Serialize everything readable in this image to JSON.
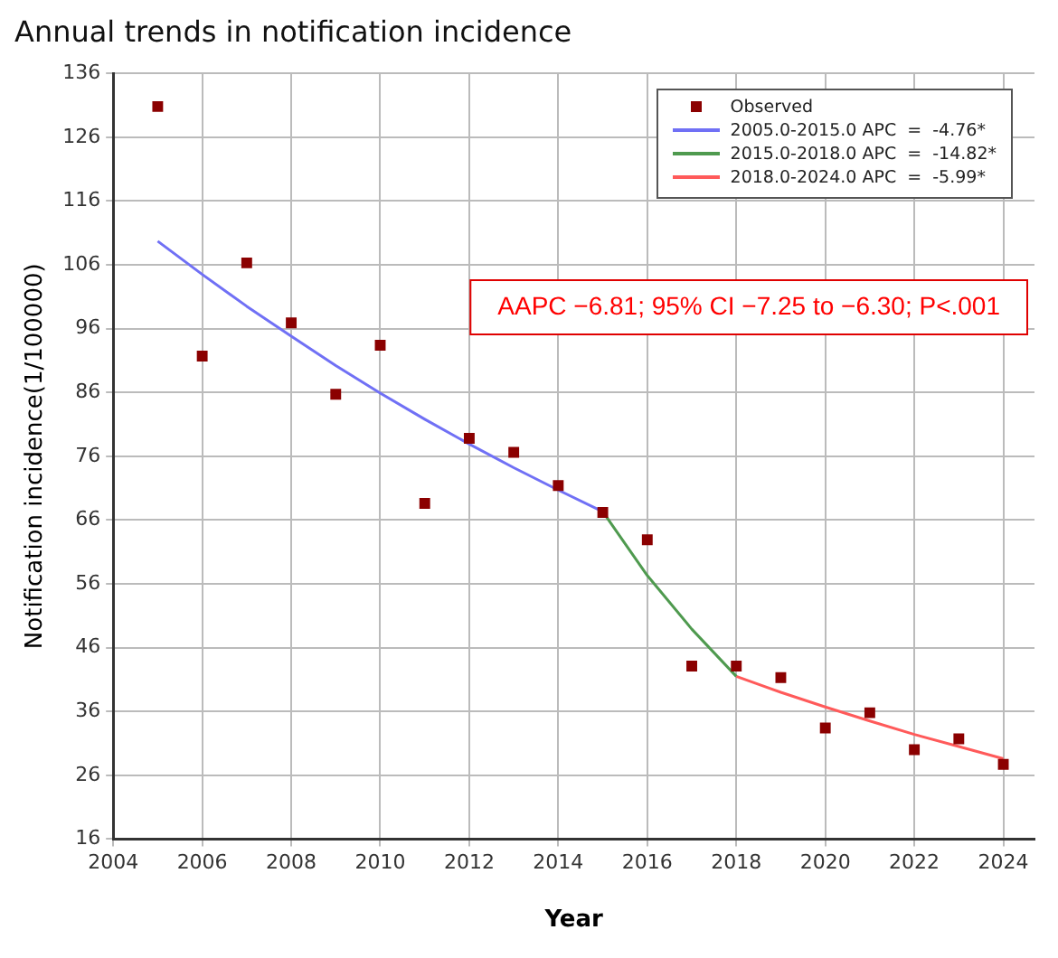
{
  "chart_data": {
    "type": "scatter",
    "title": "Annual trends in notification incidence",
    "xlabel": "Year",
    "ylabel": "Notification incidence(1/100000)",
    "xlim": [
      2004,
      2024.7
    ],
    "xticks": [
      2004,
      2006,
      2008,
      2010,
      2012,
      2014,
      2016,
      2018,
      2020,
      2022,
      2024
    ],
    "ylim": [
      16,
      136
    ],
    "yticks": [
      16,
      26,
      36,
      46,
      56,
      66,
      76,
      86,
      96,
      106,
      116,
      126,
      136
    ],
    "grid": true,
    "legend": "top right",
    "annotations": [
      "AAPC −6.81; 95% CI −7.25 to −6.30; P<.001"
    ],
    "series": [
      {
        "name": "Observed",
        "type": "scatter",
        "marker": "square",
        "color": "#8b0000",
        "x": [
          2005,
          2006,
          2007,
          2008,
          2009,
          2010,
          2011,
          2012,
          2013,
          2014,
          2015,
          2016,
          2017,
          2018,
          2019,
          2020,
          2021,
          2022,
          2023,
          2024
        ],
        "values": [
          130.8,
          91.7,
          106.3,
          96.9,
          85.7,
          93.4,
          68.6,
          78.8,
          76.6,
          71.4,
          67.2,
          62.9,
          43.1,
          43.1,
          41.3,
          33.4,
          35.8,
          30,
          31.7,
          27.7
        ]
      },
      {
        "name": "2005.0-2015.0 APC  =  -4.76*",
        "type": "line",
        "marker": "none",
        "color": "#7070f5",
        "x": [
          2005,
          2006,
          2007,
          2008,
          2009,
          2010,
          2011,
          2012,
          2013,
          2014,
          2015
        ],
        "values": [
          109.7,
          104.5,
          99.5,
          94.8,
          90.2,
          85.9,
          81.8,
          77.9,
          74.2,
          70.7,
          67.3
        ]
      },
      {
        "name": "2015.0-2018.0 APC  =  -14.82*",
        "type": "line",
        "marker": "none",
        "color": "#4f9a4f",
        "x": [
          2015,
          2016,
          2017,
          2018
        ],
        "values": [
          67.3,
          57.3,
          48.9,
          41.5
        ]
      },
      {
        "name": "2018.0-2024.0 APC  =  -5.99*",
        "type": "line",
        "marker": "none",
        "color": "#ff5a5a",
        "x": [
          2018,
          2019,
          2020,
          2021,
          2022,
          2023,
          2024
        ],
        "values": [
          41.5,
          39,
          36.7,
          34.5,
          32.4,
          30.5,
          28.6
        ]
      }
    ]
  }
}
